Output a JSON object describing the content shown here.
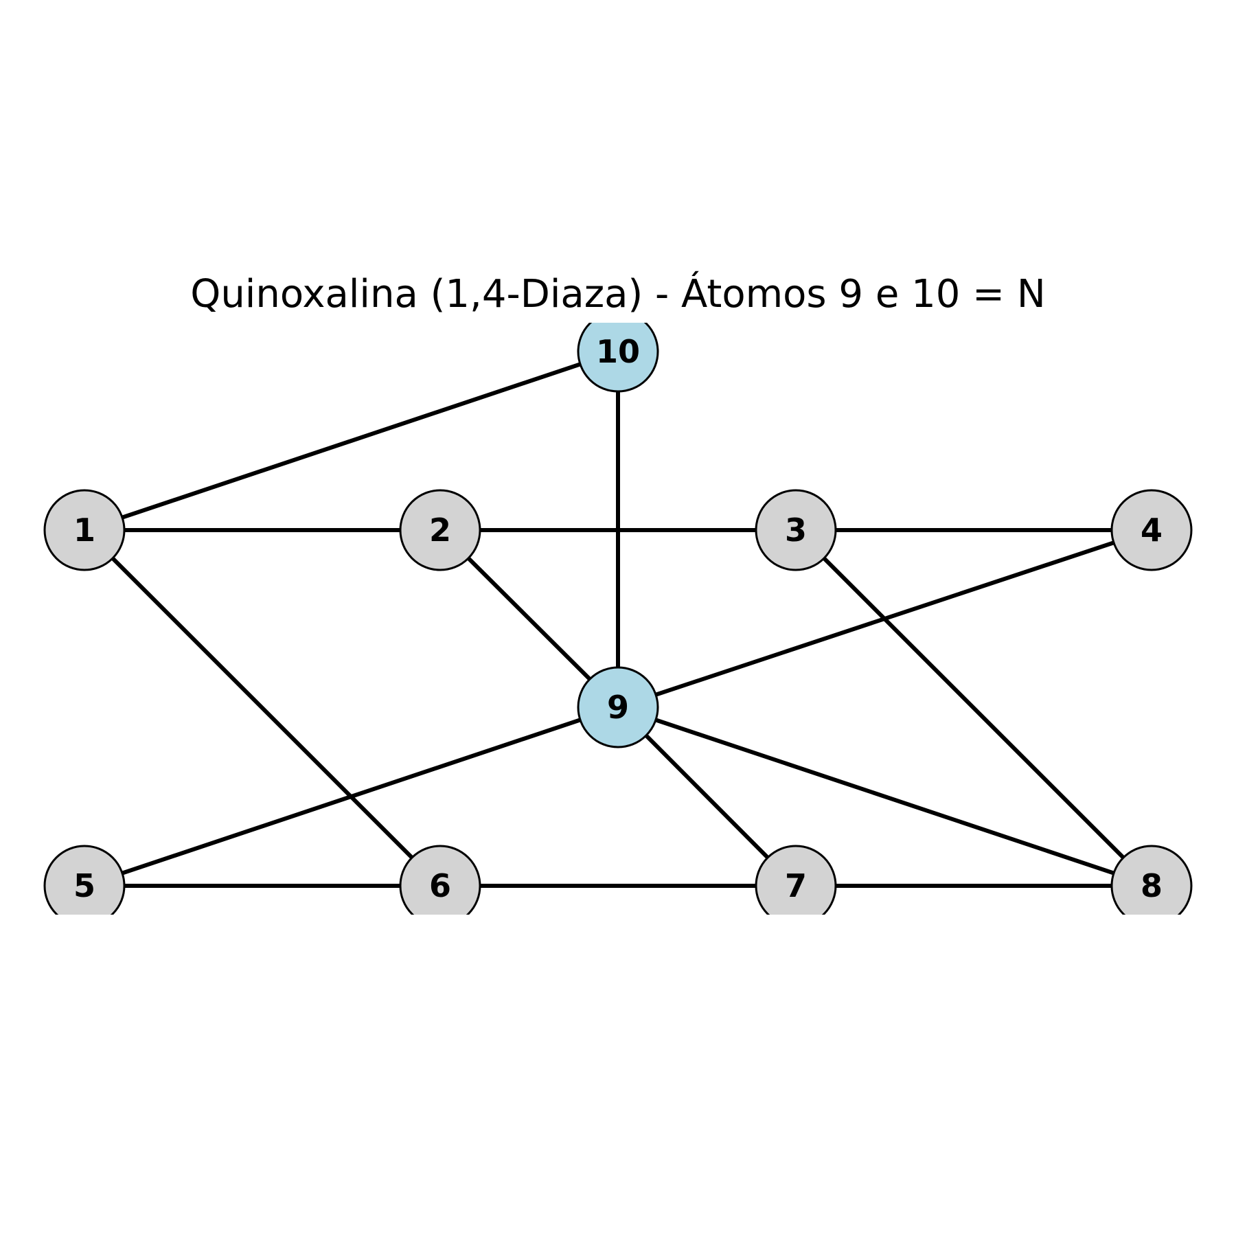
{
  "diagram": {
    "title": "Quinoxalina (1,4-Diaza) - Átomos 9 e 10 = N",
    "colors": {
      "carbon_fill": "#d3d3d3",
      "nitrogen_fill": "#add8e6",
      "edge": "#000000",
      "node_outline": "#000000"
    },
    "nodes": [
      {
        "id": "1",
        "label": "1",
        "type": "carbon"
      },
      {
        "id": "2",
        "label": "2",
        "type": "carbon"
      },
      {
        "id": "3",
        "label": "3",
        "type": "carbon"
      },
      {
        "id": "4",
        "label": "4",
        "type": "carbon"
      },
      {
        "id": "5",
        "label": "5",
        "type": "carbon"
      },
      {
        "id": "6",
        "label": "6",
        "type": "carbon"
      },
      {
        "id": "7",
        "label": "7",
        "type": "carbon"
      },
      {
        "id": "8",
        "label": "8",
        "type": "carbon"
      },
      {
        "id": "9",
        "label": "9",
        "type": "nitrogen"
      },
      {
        "id": "10",
        "label": "10",
        "type": "nitrogen"
      }
    ],
    "edges": [
      [
        "1",
        "10"
      ],
      [
        "1",
        "2"
      ],
      [
        "1",
        "6"
      ],
      [
        "2",
        "3"
      ],
      [
        "2",
        "9"
      ],
      [
        "3",
        "4"
      ],
      [
        "3",
        "8"
      ],
      [
        "4",
        "9"
      ],
      [
        "5",
        "9"
      ],
      [
        "5",
        "6"
      ],
      [
        "6",
        "7"
      ],
      [
        "7",
        "8"
      ],
      [
        "7",
        "9"
      ],
      [
        "8",
        "9"
      ],
      [
        "9",
        "10"
      ]
    ]
  }
}
